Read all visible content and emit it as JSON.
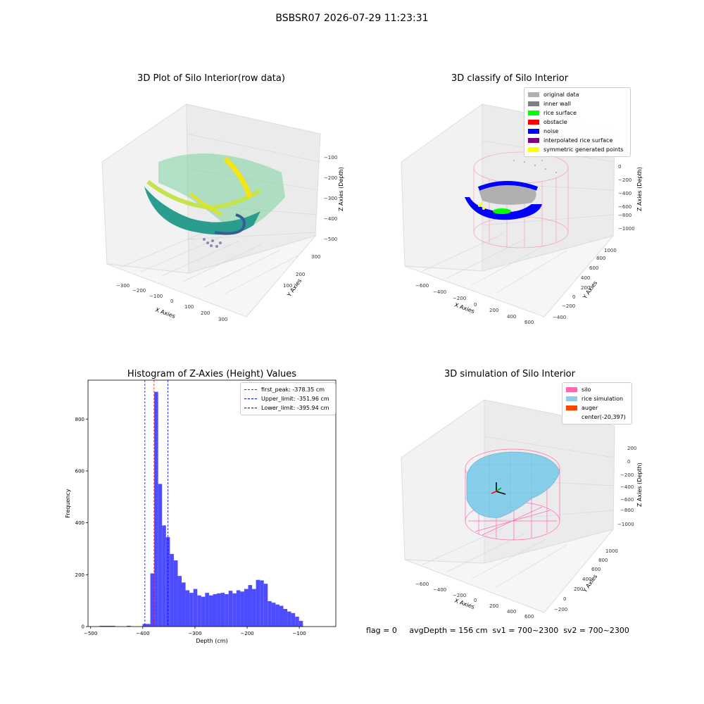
{
  "suptitle": "BSBSR07 2026-07-29 11:23:31",
  "footer_text": "flag = 0     avgDepth = 156 cm  sv1 = 700~2300  sv2 = 700~2300",
  "panels": {
    "raw": {
      "title": "3D Plot of Silo Interior(row data)",
      "xlabel": "X Axies",
      "ylabel": "Y Axies",
      "zlabel": "Z Axies (Depth)",
      "xticks": [
        "−300",
        "−200",
        "−100",
        "0",
        "100",
        "200",
        "300"
      ],
      "yticks": [
        "−300",
        "−200",
        "−100",
        "0",
        "100",
        "200",
        "300"
      ],
      "zticks": [
        "−100",
        "−200",
        "−300",
        "−400",
        "−500"
      ]
    },
    "classify": {
      "title": "3D classify of Silo Interior",
      "xlabel": "X Axies",
      "ylabel": "Y Axies",
      "zlabel": "Z Axies (Depth)",
      "xticks": [
        "−600",
        "−400",
        "−200",
        "0",
        "200",
        "400",
        "600"
      ],
      "yticks": [
        "−400",
        "−200",
        "0",
        "200",
        "400",
        "600",
        "800",
        "1000"
      ],
      "zticks": [
        "200",
        "0",
        "−200",
        "−400",
        "−600",
        "−800",
        "−1000"
      ],
      "legend": [
        {
          "label": "original data",
          "color": "#b0b0b0"
        },
        {
          "label": "inner wall",
          "color": "#808080"
        },
        {
          "label": "rice surface",
          "color": "#00ff00"
        },
        {
          "label": "obstacle",
          "color": "#ff0000"
        },
        {
          "label": "noise",
          "color": "#0000ff"
        },
        {
          "label": "interpolated rice surface",
          "color": "#800080"
        },
        {
          "label": "symmetric generated points",
          "color": "#ffff00"
        }
      ]
    },
    "simulation": {
      "title": "3D simulation of Silo Interior",
      "xlabel": "X Axies",
      "ylabel": "Y Axies",
      "zlabel": "Z Axies (Depth)",
      "xticks": [
        "−600",
        "−400",
        "−200",
        "0",
        "200",
        "400",
        "600"
      ],
      "yticks": [
        "−200",
        "0",
        "200",
        "400",
        "600",
        "800",
        "1000"
      ],
      "zticks": [
        "200",
        "0",
        "−200",
        "−400",
        "−600",
        "−800",
        "−1000"
      ],
      "legend": [
        {
          "label": "silo",
          "color": "#ff69b4"
        },
        {
          "label": "rice simulation",
          "color": "#87ceeb"
        },
        {
          "label": "auger",
          "color": "#ff4500"
        },
        {
          "label": "center(-20,397)",
          "color": "none"
        }
      ]
    }
  },
  "chart_data": {
    "type": "bar",
    "title": "Histogram of Z-Axies (Height) Values",
    "xlabel": "Depth (cm)",
    "ylabel": "Frequency",
    "xlim": [
      -505,
      -30
    ],
    "ylim": [
      0,
      950
    ],
    "xticks": [
      -500,
      -400,
      -300,
      -200,
      -100
    ],
    "yticks": [
      0,
      200,
      400,
      600,
      800
    ],
    "bin_width": 7.5,
    "bars": [
      [
        -483,
        3
      ],
      [
        -475.5,
        3
      ],
      [
        -468,
        3
      ],
      [
        -460.5,
        3
      ],
      [
        -430.5,
        3
      ],
      [
        -400.5,
        10
      ],
      [
        -393,
        10
      ],
      [
        -385.5,
        205
      ],
      [
        -378,
        905
      ],
      [
        -370.5,
        550
      ],
      [
        -363,
        390
      ],
      [
        -355.5,
        345
      ],
      [
        -348,
        280
      ],
      [
        -340.5,
        255
      ],
      [
        -333,
        195
      ],
      [
        -325.5,
        170
      ],
      [
        -318,
        140
      ],
      [
        -310.5,
        130
      ],
      [
        -303,
        145
      ],
      [
        -295.5,
        120
      ],
      [
        -288,
        115
      ],
      [
        -280.5,
        130
      ],
      [
        -273,
        120
      ],
      [
        -265.5,
        125
      ],
      [
        -258,
        128
      ],
      [
        -250.5,
        130
      ],
      [
        -243,
        125
      ],
      [
        -235.5,
        138
      ],
      [
        -228,
        128
      ],
      [
        -220.5,
        140
      ],
      [
        -213,
        135
      ],
      [
        -205.5,
        145
      ],
      [
        -198,
        160
      ],
      [
        -190.5,
        145
      ],
      [
        -183,
        180
      ],
      [
        -175.5,
        178
      ],
      [
        -168,
        165
      ],
      [
        -160.5,
        98
      ],
      [
        -153,
        92
      ],
      [
        -145.5,
        85
      ],
      [
        -138,
        80
      ],
      [
        -130.5,
        68
      ],
      [
        -123,
        58
      ],
      [
        -115.5,
        52
      ],
      [
        -108,
        38
      ],
      [
        -100.5,
        22
      ]
    ],
    "lines": [
      {
        "label": "first_peak: -378.35 cm",
        "x": -378.35,
        "color": "#ff0000"
      },
      {
        "label": "Upper_limit: -351.96 cm",
        "x": -351.96,
        "color": "#0000ff"
      },
      {
        "label": "Lower_limit: -395.94 cm",
        "x": -395.94,
        "color": "#0000ff"
      }
    ],
    "bar_color": "#4d4dff",
    "legend_position": "upper right"
  }
}
